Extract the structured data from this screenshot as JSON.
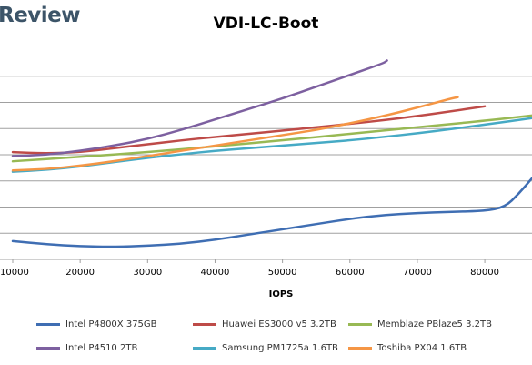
{
  "header": {
    "brand": "Review"
  },
  "chart_data": {
    "type": "line",
    "title": "VDI-LC-Boot",
    "xlabel": "IOPS",
    "ylabel": "",
    "x_ticks": [
      "10000",
      "20000",
      "30000",
      "40000",
      "50000",
      "60000",
      "70000",
      "80000"
    ],
    "xlim": [
      10000,
      87000
    ],
    "ylim": [
      0,
      8
    ],
    "grid": "horizontal",
    "legend_position": "bottom",
    "series": [
      {
        "name": "Intel P4800X 375GB",
        "color": "#3f6eb3",
        "points": [
          [
            10000,
            0.7
          ],
          [
            15000,
            0.58
          ],
          [
            20000,
            0.5
          ],
          [
            25000,
            0.48
          ],
          [
            30000,
            0.52
          ],
          [
            35000,
            0.6
          ],
          [
            40000,
            0.75
          ],
          [
            45000,
            0.95
          ],
          [
            50000,
            1.15
          ],
          [
            55000,
            1.35
          ],
          [
            60000,
            1.55
          ],
          [
            65000,
            1.7
          ],
          [
            70000,
            1.77
          ],
          [
            75000,
            1.82
          ],
          [
            80000,
            1.85
          ],
          [
            83000,
            2.0
          ],
          [
            85000,
            2.5
          ],
          [
            87000,
            3.1
          ]
        ]
      },
      {
        "name": "Huawei ES3000 v5 3.2TB",
        "color": "#be4b48",
        "points": [
          [
            10000,
            4.1
          ],
          [
            15000,
            4.05
          ],
          [
            20000,
            4.1
          ],
          [
            25000,
            4.25
          ],
          [
            30000,
            4.4
          ],
          [
            35000,
            4.55
          ],
          [
            40000,
            4.68
          ],
          [
            45000,
            4.8
          ],
          [
            50000,
            4.92
          ],
          [
            55000,
            5.05
          ],
          [
            60000,
            5.18
          ],
          [
            65000,
            5.32
          ],
          [
            70000,
            5.48
          ],
          [
            75000,
            5.66
          ],
          [
            80000,
            5.85
          ]
        ]
      },
      {
        "name": "Memblaze PBlaze5 3.2TB",
        "color": "#98b954",
        "points": [
          [
            10000,
            3.75
          ],
          [
            20000,
            3.92
          ],
          [
            30000,
            4.1
          ],
          [
            40000,
            4.32
          ],
          [
            50000,
            4.55
          ],
          [
            60000,
            4.8
          ],
          [
            70000,
            5.05
          ],
          [
            80000,
            5.3
          ],
          [
            87000,
            5.5
          ]
        ]
      },
      {
        "name": "Intel P4510 2TB",
        "color": "#7d60a0",
        "points": [
          [
            10000,
            3.95
          ],
          [
            15000,
            4.0
          ],
          [
            20000,
            4.15
          ],
          [
            25000,
            4.35
          ],
          [
            30000,
            4.6
          ],
          [
            35000,
            4.95
          ],
          [
            40000,
            5.35
          ],
          [
            45000,
            5.75
          ],
          [
            50000,
            6.15
          ],
          [
            55000,
            6.6
          ],
          [
            60000,
            7.05
          ],
          [
            65000,
            7.5
          ],
          [
            65500,
            7.6
          ]
        ]
      },
      {
        "name": "Samsung PM1725a 1.6TB",
        "color": "#46aac5",
        "points": [
          [
            10000,
            3.35
          ],
          [
            15000,
            3.42
          ],
          [
            20000,
            3.55
          ],
          [
            25000,
            3.72
          ],
          [
            30000,
            3.88
          ],
          [
            35000,
            4.02
          ],
          [
            40000,
            4.15
          ],
          [
            45000,
            4.25
          ],
          [
            50000,
            4.35
          ],
          [
            55000,
            4.45
          ],
          [
            60000,
            4.55
          ],
          [
            65000,
            4.68
          ],
          [
            70000,
            4.82
          ],
          [
            75000,
            4.98
          ],
          [
            80000,
            5.15
          ],
          [
            87000,
            5.4
          ]
        ]
      },
      {
        "name": "Toshiba PX04 1.6TB",
        "color": "#f59645",
        "points": [
          [
            10000,
            3.4
          ],
          [
            15000,
            3.45
          ],
          [
            20000,
            3.58
          ],
          [
            25000,
            3.75
          ],
          [
            30000,
            3.95
          ],
          [
            35000,
            4.15
          ],
          [
            40000,
            4.35
          ],
          [
            45000,
            4.55
          ],
          [
            50000,
            4.75
          ],
          [
            55000,
            4.95
          ],
          [
            60000,
            5.2
          ],
          [
            65000,
            5.48
          ],
          [
            70000,
            5.8
          ],
          [
            75000,
            6.15
          ],
          [
            76000,
            6.2
          ]
        ]
      }
    ]
  }
}
